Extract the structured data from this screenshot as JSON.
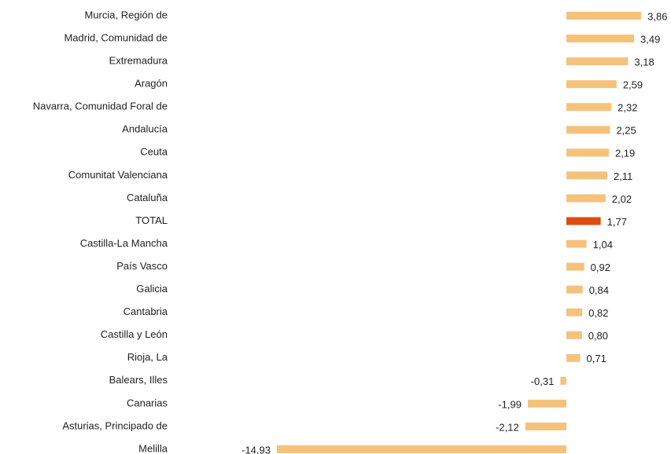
{
  "chart_data": {
    "type": "barh",
    "categories": [
      "Murcia, Región de",
      "Madrid, Comunidad de",
      "Extremadura",
      "Aragón",
      "Navarra, Comunidad Foral de",
      "Andalucía",
      "Ceuta",
      "Comunitat Valenciana",
      "Cataluña",
      "TOTAL",
      "Castilla-La Mancha",
      "País Vasco",
      "Galicia",
      "Cantabria",
      "Castilla y León",
      "Rioja, La",
      "Balears, Illes",
      "Canarias",
      "Asturias, Principado de",
      "Melilla"
    ],
    "values": [
      3.86,
      3.49,
      3.18,
      2.59,
      2.32,
      2.25,
      2.19,
      2.11,
      2.02,
      1.77,
      1.04,
      0.92,
      0.84,
      0.82,
      0.8,
      0.71,
      -0.31,
      -1.99,
      -2.12,
      -14.93
    ],
    "value_labels": [
      "3,86",
      "3,49",
      "3,18",
      "2,59",
      "2,32",
      "2,25",
      "2,19",
      "2,11",
      "2,02",
      "1,77",
      "1,04",
      "0,92",
      "0,84",
      "0,82",
      "0,80",
      "0,71",
      "-0,31",
      "-1,99",
      "-2,12",
      "-14,93"
    ],
    "colors": [
      "#f5c27c",
      "#f5c27c",
      "#f5c27c",
      "#f5c27c",
      "#f5c27c",
      "#f5c27c",
      "#f5c27c",
      "#f5c27c",
      "#f5c27c",
      "#dd4d0f",
      "#f5c27c",
      "#f5c27c",
      "#f5c27c",
      "#f5c27c",
      "#f5c27c",
      "#f5c27c",
      "#f5c27c",
      "#f5c27c",
      "#f5c27c",
      "#f5c27c"
    ]
  }
}
